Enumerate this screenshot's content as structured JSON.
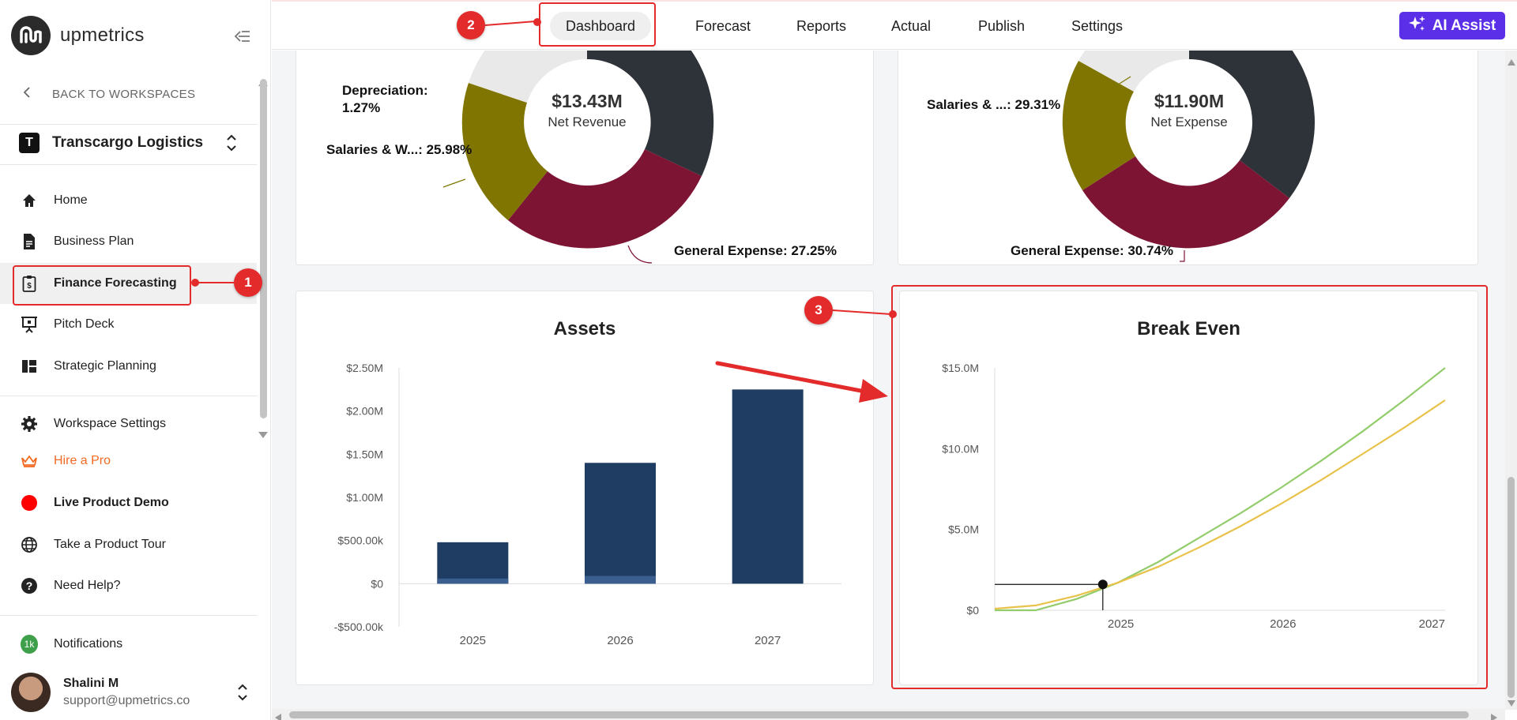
{
  "brand": {
    "name": "upmetrics"
  },
  "sidebar": {
    "back_label": "BACK TO WORKSPACES",
    "workspace": {
      "initial": "T",
      "name": "Transcargo Logistics"
    },
    "nav": [
      {
        "label": "Home",
        "icon": "home-icon"
      },
      {
        "label": "Business Plan",
        "icon": "document-icon"
      },
      {
        "label": "Finance Forecasting",
        "icon": "finance-icon"
      },
      {
        "label": "Pitch Deck",
        "icon": "presentation-icon"
      },
      {
        "label": "Strategic Planning",
        "icon": "grid-icon"
      }
    ],
    "secondary": [
      {
        "label": "Workspace Settings",
        "icon": "gear-icon"
      },
      {
        "label": "Hire a Pro",
        "icon": "crown-icon"
      },
      {
        "label": "Live Product Demo",
        "icon": "live-dot-icon"
      },
      {
        "label": "Take a Product Tour",
        "icon": "globe-icon"
      },
      {
        "label": "Need Help?",
        "icon": "help-icon"
      }
    ],
    "notifications": {
      "label": "Notifications",
      "count": "1k"
    },
    "user": {
      "name": "Shalini M",
      "email": "support@upmetrics.co"
    }
  },
  "topnav": {
    "tabs": [
      "Dashboard",
      "Forecast",
      "Reports",
      "Actual",
      "Publish",
      "Settings"
    ],
    "active": "Dashboard",
    "ai_label": "AI Assist"
  },
  "revenue_donut": {
    "center_value": "$13.43M",
    "center_label": "Net Revenue",
    "labels": [
      "Depreciation:",
      "1.27%",
      "Salaries & W...: 25.98%",
      "General Expense: 27.25%"
    ]
  },
  "expense_donut": {
    "center_value": "$11.90M",
    "center_label": "Net Expense",
    "labels": [
      "Salaries & ...: 29.31%",
      "General Expense: 30.74%"
    ]
  },
  "chart_data": [
    {
      "type": "bar",
      "title": "Assets",
      "categories": [
        "2025",
        "2026",
        "2027"
      ],
      "series": [
        {
          "values": [
            480000,
            1400000,
            2250000
          ]
        },
        {
          "values": [
            60000,
            90000,
            0
          ]
        }
      ],
      "y_ticks": [
        "$2.50M",
        "$2.00M",
        "$1.50M",
        "$1.00M",
        "$500.00k",
        "$0",
        "-$500.00k"
      ],
      "ylim": [
        -500000,
        2500000
      ],
      "colors": [
        "#1f3d63",
        "#3a5f8f"
      ]
    },
    {
      "type": "line",
      "title": "Break Even",
      "x_ticks": [
        "2025",
        "2026",
        "2027"
      ],
      "y_ticks": [
        "$15.0M",
        "$10.0M",
        "$5.0M",
        "$0"
      ],
      "ylim": [
        0,
        15000000
      ],
      "series": [
        {
          "color": "#93cc6b",
          "values": [
            0,
            0,
            0.7,
            1.7,
            3.0,
            4.5,
            6.0,
            7.6,
            9.3,
            11.1,
            13.0,
            15.0
          ]
        },
        {
          "color": "#e8c24a",
          "values": [
            0.1,
            0.3,
            0.9,
            1.7,
            2.7,
            3.9,
            5.2,
            6.6,
            8.1,
            9.7,
            11.3,
            13.0
          ]
        }
      ],
      "break_even_point_value": 1.6
    }
  ],
  "annotations": [
    "1",
    "2",
    "3"
  ]
}
